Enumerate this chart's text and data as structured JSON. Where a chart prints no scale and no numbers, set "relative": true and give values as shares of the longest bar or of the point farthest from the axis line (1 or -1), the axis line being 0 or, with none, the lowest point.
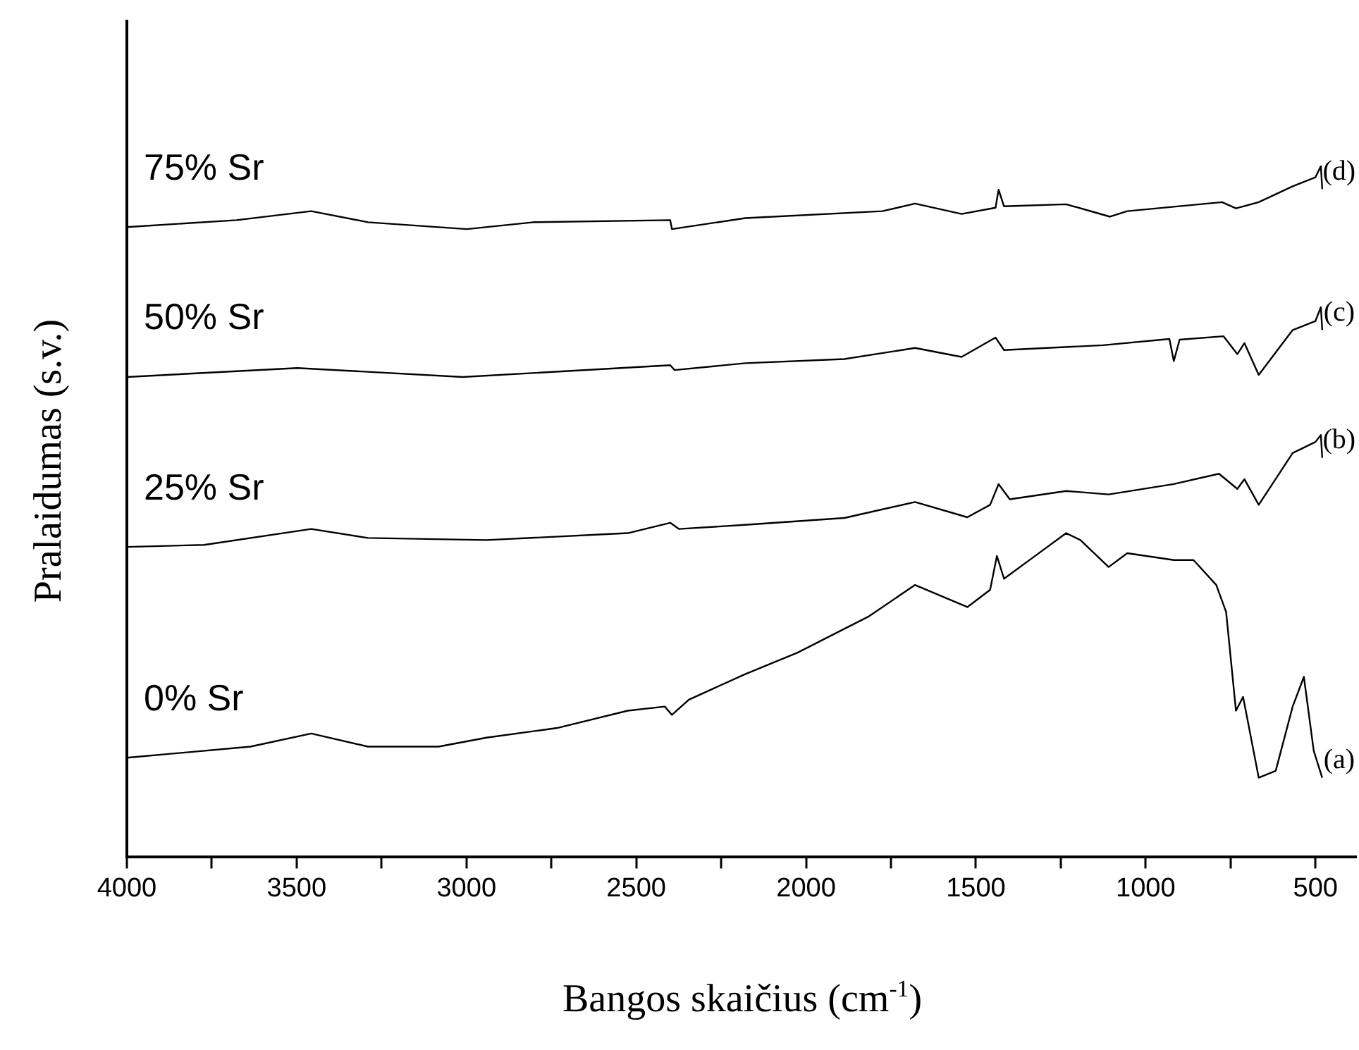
{
  "chart_data": {
    "type": "line",
    "xlabel": "Bangos skaičius (cm$^{-1}$)",
    "ylabel": "Pralaidumas (s.v.)",
    "relative": true,
    "grid": false,
    "legend": false,
    "marker": "none",
    "line_style": "solid",
    "tick_labels": "x",
    "xlim": [
      4000,
      380
    ],
    "xticks": [
      4000,
      {
        "value": 3750,
        "label": null
      },
      3500,
      {
        "value": 3250,
        "label": null
      },
      3000,
      {
        "value": 2750,
        "label": null
      },
      2500,
      {
        "value": 2250,
        "label": null
      },
      2000,
      {
        "value": 1750,
        "label": null
      },
      1500,
      {
        "value": 1250,
        "label": null
      },
      1000,
      {
        "value": 750,
        "label": null
      },
      500
    ],
    "series": [
      {
        "name": "0% Sr",
        "color": "#000000",
        "x": [
          4000,
          3636,
          3457,
          3290,
          3082,
          2941,
          2733,
          2525,
          2416,
          2395,
          2345,
          2179,
          2025,
          1817,
          1679,
          1583,
          1525,
          1458,
          1438,
          1417,
          1334,
          1234,
          1192,
          1109,
          1054,
          917,
          859,
          792,
          763,
          734,
          713,
          667,
          617,
          567,
          534,
          505,
          480
        ],
        "values": [
          0.144,
          0.16,
          0.179,
          0.16,
          0.16,
          0.173,
          0.187,
          0.212,
          0.218,
          0.206,
          0.228,
          0.265,
          0.296,
          0.348,
          0.394,
          0.374,
          0.362,
          0.387,
          0.436,
          0.403,
          0.433,
          0.469,
          0.459,
          0.42,
          0.44,
          0.43,
          0.43,
          0.394,
          0.355,
          0.212,
          0.232,
          0.115,
          0.125,
          0.218,
          0.261,
          0.154,
          0.115
        ]
      },
      {
        "name": "25% Sr",
        "color": "#000000",
        "x": [
          4000,
          3773,
          3457,
          3290,
          2941,
          2525,
          2400,
          2374,
          2179,
          1887,
          1679,
          1525,
          1458,
          1433,
          1400,
          1234,
          1109,
          917,
          784,
          730,
          709,
          667,
          567,
          500,
          484,
          480
        ],
        "values": [
          0.449,
          0.452,
          0.475,
          0.462,
          0.459,
          0.469,
          0.484,
          0.475,
          0.481,
          0.491,
          0.514,
          0.492,
          0.51,
          0.54,
          0.518,
          0.53,
          0.525,
          0.54,
          0.555,
          0.533,
          0.547,
          0.51,
          0.585,
          0.601,
          0.611,
          0.578
        ]
      },
      {
        "name": "50% Sr",
        "color": "#000000",
        "x": [
          4000,
          3498,
          3011,
          2400,
          2387,
          2179,
          1887,
          1679,
          1542,
          1442,
          1417,
          1125,
          930,
          917,
          900,
          771,
          730,
          709,
          667,
          567,
          500,
          484,
          480
        ],
        "values": [
          0.695,
          0.708,
          0.695,
          0.712,
          0.705,
          0.715,
          0.721,
          0.737,
          0.724,
          0.752,
          0.734,
          0.741,
          0.75,
          0.718,
          0.749,
          0.754,
          0.728,
          0.744,
          0.698,
          0.763,
          0.776,
          0.796,
          0.763
        ]
      },
      {
        "name": "75% Sr",
        "color": "#000000",
        "x": [
          4000,
          3677,
          3457,
          3290,
          2999,
          2803,
          2400,
          2395,
          2179,
          1775,
          1679,
          1542,
          1442,
          1433,
          1417,
          1234,
          1105,
          1054,
          775,
          734,
          667,
          567,
          500,
          484,
          480
        ],
        "values": [
          0.912,
          0.922,
          0.935,
          0.919,
          0.909,
          0.919,
          0.922,
          0.909,
          0.925,
          0.935,
          0.946,
          0.931,
          0.94,
          0.966,
          0.942,
          0.945,
          0.927,
          0.935,
          0.948,
          0.939,
          0.948,
          0.971,
          0.984,
          1,
          0.967
        ]
      }
    ],
    "annotations": [
      "(a)",
      "(b)",
      "(c)",
      "(d)"
    ]
  }
}
